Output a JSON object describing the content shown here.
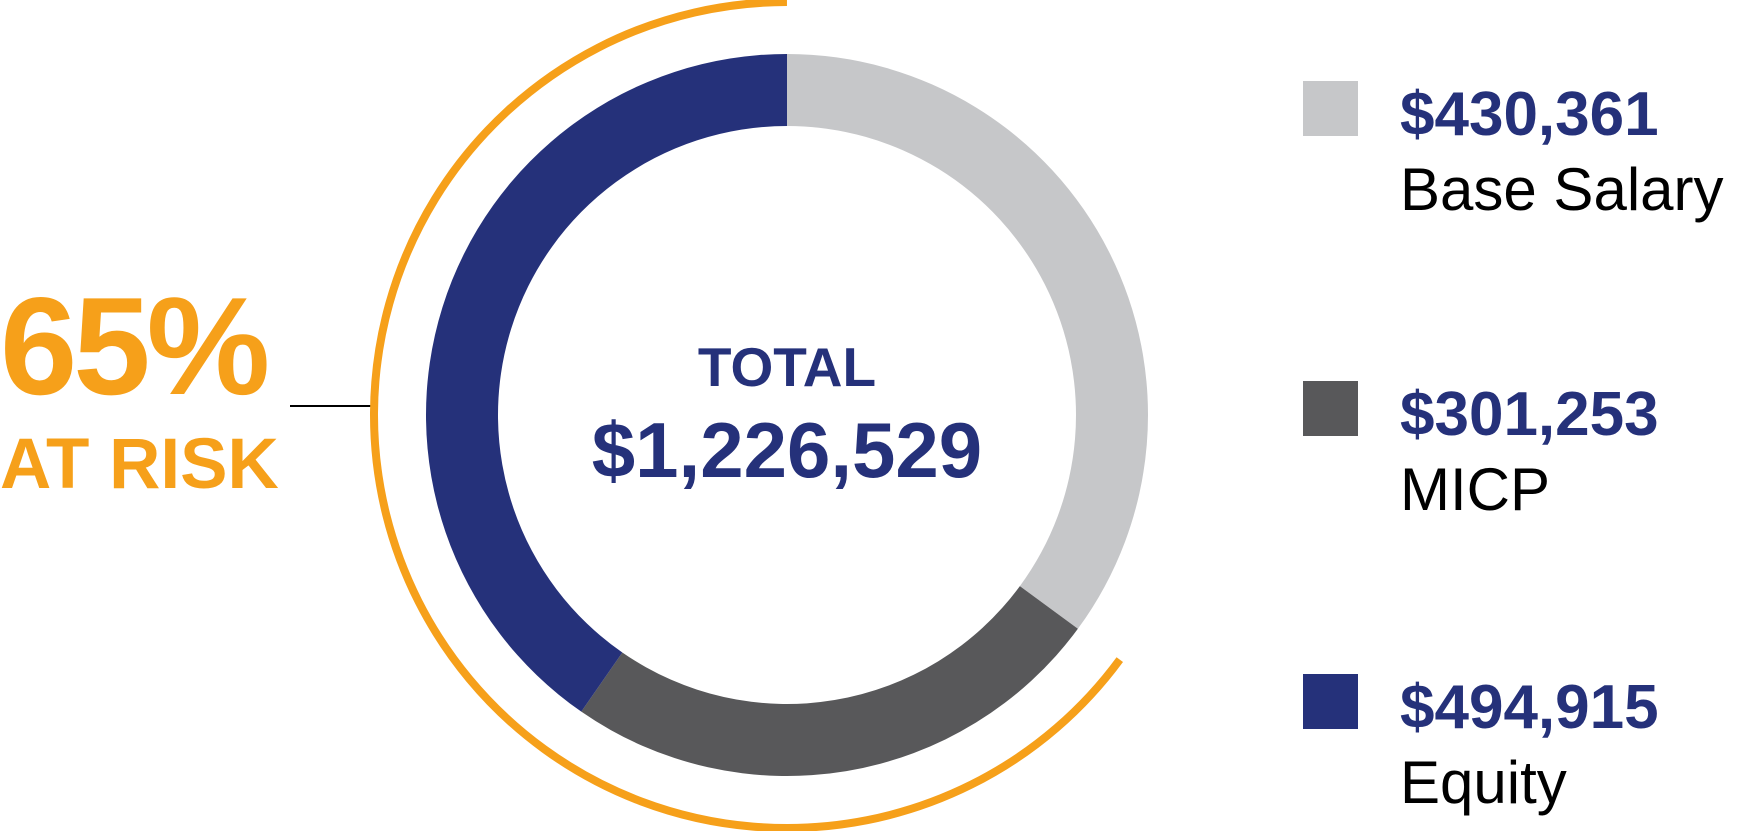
{
  "chart_data": {
    "type": "donut",
    "categories": [
      "Base Salary",
      "MICP",
      "Equity"
    ],
    "values": [
      430361,
      301253,
      494915
    ],
    "value_labels": [
      "$430,361",
      "$301,253",
      "$494,915"
    ],
    "colors": [
      "#c6c7c9",
      "#58585a",
      "#25317a"
    ],
    "center_title": "TOTAL",
    "center_value": "$1,226,529",
    "annotation": "65%",
    "annotation_label": "AT RISK",
    "highlight_color": "#f6a01a",
    "legend": "right"
  }
}
